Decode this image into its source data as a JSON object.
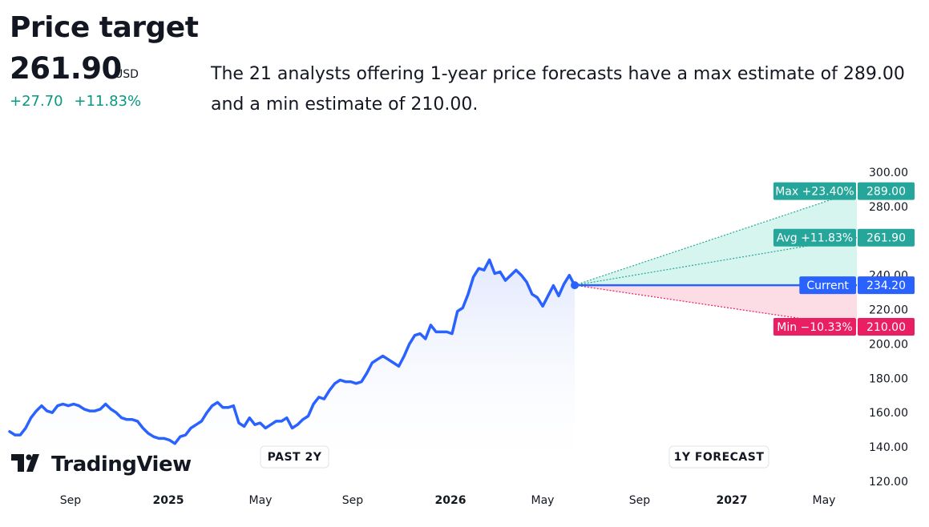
{
  "header": {
    "title": "Price target",
    "price": "261.90",
    "currency": "USD",
    "change_abs": "+27.70",
    "change_pct": "+11.83%",
    "description": "The 21 analysts offering 1-year price forecasts have a max estimate of 289.00 and a min estimate of 210.00."
  },
  "brand": {
    "name": "TradingView"
  },
  "colors": {
    "line": "#2962ff",
    "up": "#26a69a",
    "down": "#e91e63",
    "up_fill": "#d6f5ef",
    "down_fill": "#fcdde6",
    "change_text": "#089981"
  },
  "chart_data": {
    "type": "line",
    "title": "",
    "xlabel": "",
    "ylabel": "",
    "ylim": [
      120,
      300
    ],
    "y_ticks": [
      "300.00",
      "280.00",
      "240.00",
      "220.00",
      "200.00",
      "180.00",
      "160.00",
      "140.00",
      "120.00"
    ],
    "x_ticks": [
      "Sep",
      "2025",
      "May",
      "Sep",
      "2026",
      "May",
      "Sep",
      "2027",
      "May"
    ],
    "period_labels": {
      "past": "PAST 2Y",
      "forecast": "1Y FORECAST"
    },
    "grid": false,
    "series": [
      {
        "values": [
          149,
          147,
          147,
          151,
          157,
          161,
          164,
          161,
          160,
          164,
          165,
          164,
          165,
          164,
          162,
          161,
          161,
          162,
          165,
          162,
          160,
          157,
          156,
          156,
          155,
          151,
          148,
          146,
          145,
          145,
          144,
          142,
          146,
          147,
          151,
          153,
          155,
          160,
          164,
          166,
          163,
          163,
          164,
          154,
          152,
          157,
          153,
          154,
          151,
          153,
          155,
          155,
          157,
          151,
          153,
          156,
          158,
          165,
          169,
          168,
          173,
          177,
          179,
          178,
          178,
          177,
          178,
          183,
          189,
          191,
          193,
          191,
          189,
          187,
          193,
          200,
          205,
          206,
          203,
          211,
          207,
          207,
          207,
          206,
          219,
          221,
          229,
          239,
          244,
          243,
          249,
          241,
          242,
          237,
          240,
          243,
          240,
          236,
          229,
          227,
          222,
          228,
          234,
          228,
          235,
          240,
          234
        ]
      }
    ],
    "current": {
      "label": "Current",
      "value": 234.2,
      "value_label": "234.20"
    },
    "forecasts": [
      {
        "kind": "max",
        "label": "Max +23.40%",
        "value": 289.0,
        "value_label": "289.00"
      },
      {
        "kind": "avg",
        "label": "Avg +11.83%",
        "value": 261.9,
        "value_label": "261.90"
      },
      {
        "kind": "min",
        "label": "Min −10.33%",
        "value": 210.0,
        "value_label": "210.00"
      }
    ]
  }
}
